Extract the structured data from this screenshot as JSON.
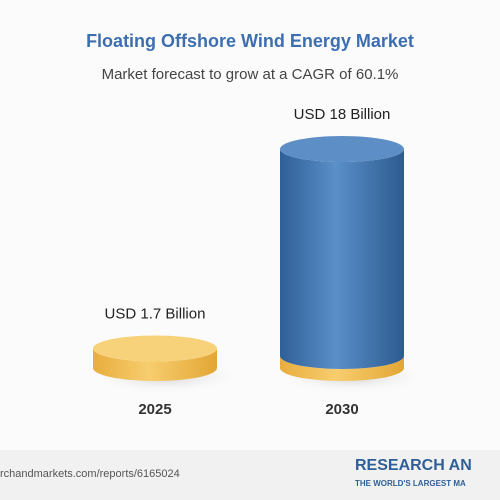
{
  "chart_data": {
    "type": "cylinder",
    "title": "Floating Offshore Wind Energy Market",
    "subtitle": "Market forecast to grow at a CAGR of 60.1%",
    "categories": [
      "2025",
      "2030"
    ],
    "values": [
      1.7,
      18
    ],
    "value_labels": [
      "USD 1.7 Billion",
      "USD 18 Billion"
    ],
    "colors": [
      "#f3c15a",
      "#3f74ad"
    ],
    "source": "rchandmarkets.com/reports/6165024",
    "brand": "RESEARCH AN",
    "tagline": "THE WORLD'S LARGEST MA"
  }
}
